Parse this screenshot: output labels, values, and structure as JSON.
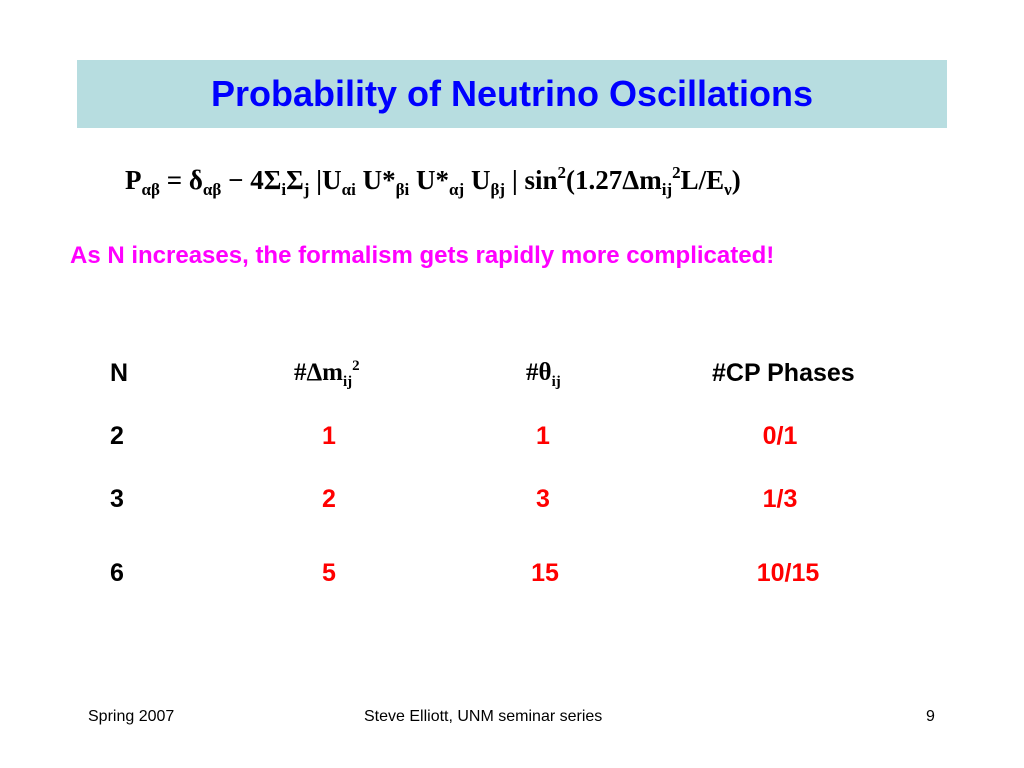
{
  "title": "Probability of Neutrino Oscillations",
  "formula": {
    "P": "P",
    "P_sub": "αβ",
    "eq_delta": " = δ",
    "delta_sub": "αβ",
    "minus4sigma": " − 4Σ",
    "sigma_i": "i",
    "sigma2": "Σ",
    "sigma_j": "j",
    "absU": " |U",
    "U1_sub": "αi",
    "Ustar1": " U*",
    "U2_sub": "βi",
    "Ustar2": " U*",
    "U3_sub": "αj",
    "U4": " U",
    "U4_sub": "βj",
    "sin": "| sin",
    "sin_sup": "2",
    "arg": "(1.27Δm",
    "m_sub": "ij",
    "m_sup": "2",
    "LE": "L/E",
    "E_sub": "ν",
    "close": ")"
  },
  "subtitle": "As N increases, the formalism gets rapidly more complicated!",
  "table": {
    "headers": {
      "n": "N",
      "dm_prefix": "#Δm",
      "dm_sub": "ij",
      "dm_sup": "2",
      "theta_prefix": "#θ",
      "theta_sub": "ij",
      "cp": "#CP Phases"
    },
    "rows": [
      {
        "n": "2",
        "dm": "1",
        "theta": "1",
        "cp": "0/1"
      },
      {
        "n": "3",
        "dm": "2",
        "theta": "3",
        "cp": "1/3"
      },
      {
        "n": "6",
        "dm": "5",
        "theta": "15",
        "cp": "10/15"
      }
    ]
  },
  "footer": {
    "left": "Spring 2007",
    "center": "Steve Elliott, UNM seminar series",
    "right": "9"
  },
  "colors": {
    "title": "#0000ff",
    "title_bg": "#b7dde0",
    "subtitle": "#ff00ff",
    "values": "#ff0000"
  }
}
